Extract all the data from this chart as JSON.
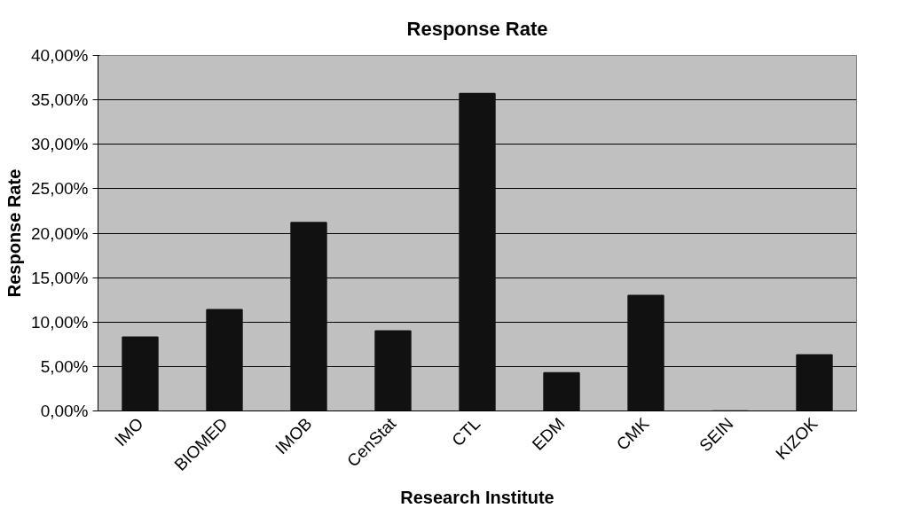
{
  "chart_data": {
    "type": "bar",
    "title": "Response Rate",
    "xlabel": "Research Institute",
    "ylabel": "Response Rate",
    "categories": [
      "IMO",
      "BIOMED",
      "IMOB",
      "CenStat",
      "CTL",
      "EDM",
      "CMK",
      "SEIN",
      "KIZOK"
    ],
    "values": [
      8.3,
      11.4,
      21.2,
      9.0,
      35.7,
      4.3,
      13.0,
      0,
      6.3
    ],
    "color": "#111111",
    "ylim": [
      0,
      40
    ],
    "yticks": [
      {
        "value": 0,
        "label": "0,00%"
      },
      {
        "value": 5,
        "label": "5,00%"
      },
      {
        "value": 10,
        "label": "10,00%"
      },
      {
        "value": 15,
        "label": "15,00%"
      },
      {
        "value": 20,
        "label": "20,00%"
      },
      {
        "value": 25,
        "label": "25,00%"
      },
      {
        "value": 30,
        "label": "30,00%"
      },
      {
        "value": 35,
        "label": "35,00%"
      },
      {
        "value": 40,
        "label": "40,00%"
      }
    ],
    "grid": "y"
  }
}
